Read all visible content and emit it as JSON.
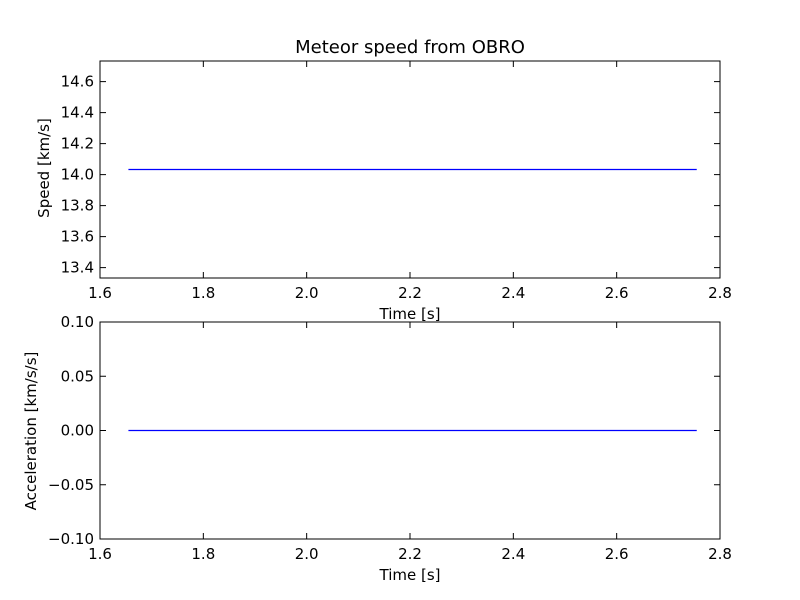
{
  "colors": {
    "line": "#0000ff",
    "axes": "#000000",
    "background": "#ffffff"
  },
  "chart_data": [
    {
      "type": "line",
      "title": "Meteor speed from  OBRO",
      "xlabel": "Time [s]",
      "ylabel": "Speed [km/s]",
      "xlim": [
        1.6,
        2.8
      ],
      "ylim": [
        13.333,
        14.733
      ],
      "xticks": [
        1.6,
        1.8,
        2.0,
        2.2,
        2.4,
        2.6,
        2.8
      ],
      "xtick_labels": [
        "1.6",
        "1.8",
        "2.0",
        "2.2",
        "2.4",
        "2.6",
        "2.8"
      ],
      "yticks": [
        13.4,
        13.6,
        13.8,
        14.0,
        14.2,
        14.4,
        14.6
      ],
      "ytick_labels": [
        "13.4",
        "13.6",
        "13.8",
        "14.0",
        "14.2",
        "14.4",
        "14.6"
      ],
      "grid": false,
      "series": [
        {
          "x": [
            1.655,
            2.755
          ],
          "y": [
            14.033,
            14.033
          ]
        }
      ]
    },
    {
      "type": "line",
      "title": "",
      "xlabel": "Time [s]",
      "ylabel": "Acceleration [km/s/s]",
      "xlim": [
        1.6,
        2.8
      ],
      "ylim": [
        -0.1,
        0.1
      ],
      "xticks": [
        1.6,
        1.8,
        2.0,
        2.2,
        2.4,
        2.6,
        2.8
      ],
      "xtick_labels": [
        "1.6",
        "1.8",
        "2.0",
        "2.2",
        "2.4",
        "2.6",
        "2.8"
      ],
      "yticks": [
        -0.1,
        -0.05,
        0.0,
        0.05,
        0.1
      ],
      "ytick_labels": [
        "−0.10",
        "−0.05",
        "0.00",
        "0.05",
        "0.10"
      ],
      "grid": false,
      "series": [
        {
          "x": [
            1.655,
            2.755
          ],
          "y": [
            0.0,
            0.0
          ]
        }
      ]
    }
  ]
}
